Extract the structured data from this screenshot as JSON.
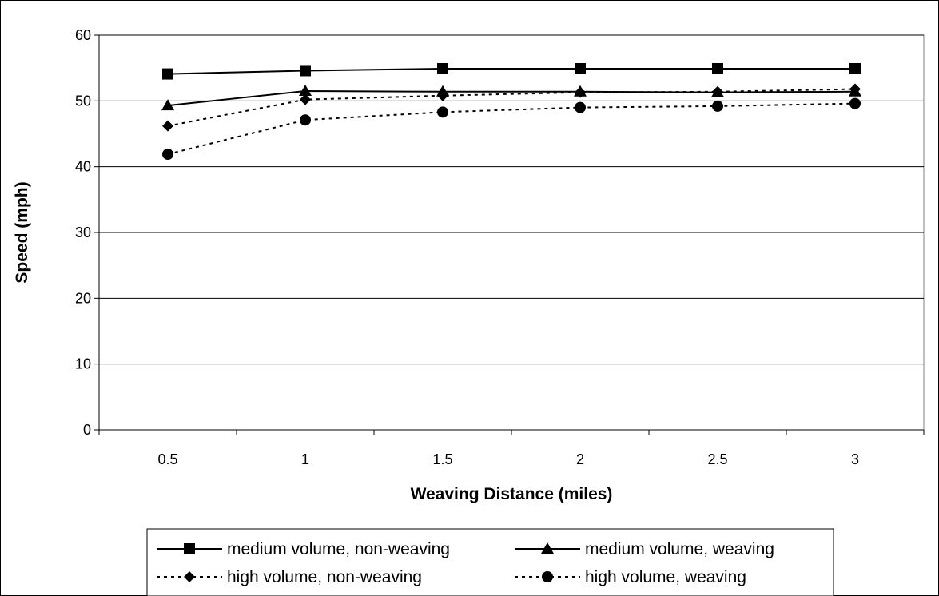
{
  "chart_data": {
    "type": "line",
    "title": "",
    "xlabel": "Weaving Distance (miles)",
    "ylabel": "Speed (mph)",
    "categories": [
      "0.5",
      "1",
      "1.5",
      "2",
      "2.5",
      "3"
    ],
    "ylim": [
      0,
      60
    ],
    "yticks": [
      "0",
      "10",
      "20",
      "30",
      "40",
      "50",
      "60"
    ],
    "grid": "horizontal",
    "legend_position": "bottom",
    "series": [
      {
        "name": "medium volume, non-weaving",
        "values": [
          54.1,
          54.6,
          54.9,
          54.9,
          54.9,
          54.9
        ],
        "marker": "square",
        "line": "solid",
        "color": "#000000"
      },
      {
        "name": "medium volume, weaving",
        "values": [
          49.3,
          51.5,
          51.4,
          51.4,
          51.3,
          51.4
        ],
        "marker": "triangle",
        "line": "solid",
        "color": "#000000"
      },
      {
        "name": "high volume, non-weaving",
        "values": [
          46.2,
          50.2,
          50.8,
          51.3,
          51.4,
          51.8
        ],
        "marker": "diamond",
        "line": "dotted",
        "color": "#000000"
      },
      {
        "name": "high volume, weaving",
        "values": [
          41.9,
          47.1,
          48.3,
          49.0,
          49.2,
          49.6
        ],
        "marker": "circle",
        "line": "dotted",
        "color": "#000000"
      }
    ]
  }
}
